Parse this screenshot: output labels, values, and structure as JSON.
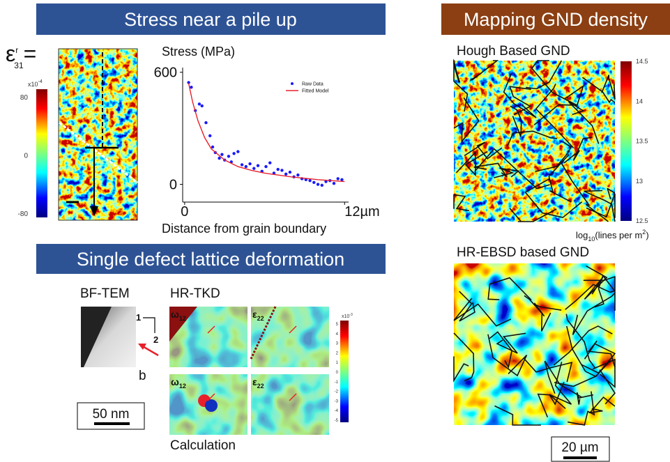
{
  "chart_data": {
    "type": "scatter",
    "title": "Stress (MPa)",
    "x_label": "Distance from grain boundary",
    "xlim": [
      -0.15,
      12.3
    ],
    "ylim": [
      -95,
      625
    ],
    "xticks": [
      0,
      {
        "value": 12,
        "label": "12µm"
      }
    ],
    "yticks": [
      0,
      600
    ],
    "series": [
      {
        "name": "Raw Data",
        "color": "#1a1aff",
        "type": "scatter",
        "x": [
          0.3,
          0.5,
          0.8,
          1.1,
          1.3,
          1.6,
          1.9,
          2.1,
          2.3,
          2.6,
          2.8,
          3.0,
          3.3,
          3.5,
          3.7,
          4.0,
          4.3,
          4.6,
          4.9,
          5.2,
          5.5,
          5.8,
          6.1,
          6.4,
          6.7,
          7.0,
          7.3,
          7.6,
          7.9,
          8.2,
          8.5,
          8.8,
          9.1,
          9.4,
          9.7,
          10.0,
          10.3,
          10.6,
          10.9,
          11.2,
          11.5,
          11.8
        ],
        "values": [
          545,
          520,
          395,
          430,
          420,
          330,
          260,
          200,
          170,
          140,
          160,
          130,
          150,
          120,
          165,
          175,
          105,
          95,
          110,
          85,
          100,
          70,
          95,
          115,
          60,
          80,
          75,
          55,
          65,
          40,
          50,
          30,
          25,
          20,
          10,
          0,
          -5,
          15,
          20,
          5,
          30,
          25
        ]
      },
      {
        "name": "Fitted Model",
        "color": "#e8202a",
        "type": "line",
        "x": [
          0.3,
          0.6,
          1,
          1.5,
          2,
          3,
          4,
          5,
          6,
          8,
          10,
          12
        ],
        "values": [
          540,
          440,
          340,
          250,
          190,
          130,
          95,
          75,
          60,
          40,
          25,
          15
        ]
      }
    ]
  },
  "stress_panel": {
    "header": "Stress near a pile up",
    "strain_symbol": "ε",
    "strain_superscript": "r",
    "strain_subscript": "31",
    "equals": "=",
    "colorbar": {
      "scale_base": "x10",
      "scale_exponent": "-4",
      "ticks": [
        80,
        0,
        -80
      ]
    }
  },
  "defect_panel": {
    "header": "Single defect lattice deformation",
    "bf_tem_label": "BF-TEM",
    "hr_tkd_label": "HR-TKD",
    "calculation_label": "Calculation",
    "axis_1": "1",
    "axis_2": "2",
    "burgers_label": "b",
    "scale_bar": "50 nm",
    "maps": [
      {
        "symbol": "ω",
        "subscript": "12"
      },
      {
        "symbol": "ε",
        "subscript": "22"
      },
      {
        "symbol": "ω",
        "subscript": "12"
      },
      {
        "symbol": "ε",
        "subscript": "22"
      }
    ],
    "colorbar": {
      "scale_base": "x10",
      "scale_exponent": "-3",
      "ticks": [
        5,
        4,
        3,
        2,
        1,
        0,
        -1,
        -2,
        -3,
        -4,
        -5
      ]
    }
  },
  "gnd_panel": {
    "header": "Mapping GND density",
    "hough_label": "Hough Based GND",
    "ebsd_label": "HR-EBSD based GND",
    "colorbar": {
      "ticks": [
        14.5,
        14,
        13.5,
        13,
        12.5
      ],
      "unit_prefix": "log",
      "unit_subscript": "10",
      "unit_text": "(lines per m",
      "unit_superscript": "2",
      "unit_suffix": ")"
    },
    "scale_bar": "20 µm"
  }
}
